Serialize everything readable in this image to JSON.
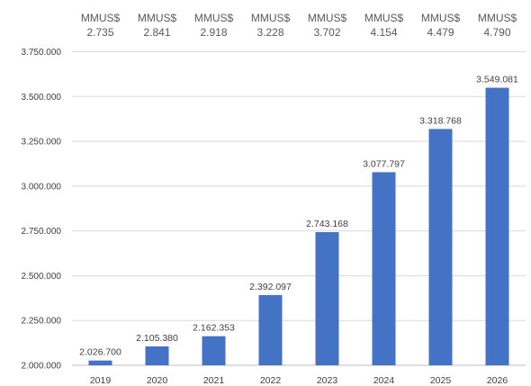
{
  "chart_data": {
    "type": "bar",
    "categories": [
      "2019",
      "2020",
      "2021",
      "2022",
      "2023",
      "2024",
      "2025",
      "2026"
    ],
    "values": [
      2026700,
      2105380,
      2162353,
      2392097,
      2743168,
      3077797,
      3318768,
      3549081
    ],
    "value_labels": [
      "2.026.700",
      "2.105.380",
      "2.162.353",
      "2.392.097",
      "2.743.168",
      "3.077.797",
      "3.318.768",
      "3.549.081"
    ],
    "top_annotations": {
      "unit": "MMUS$",
      "values": [
        "2.735",
        "2.841",
        "2.918",
        "3.228",
        "3.702",
        "4.154",
        "4.479",
        "4.790"
      ]
    },
    "ylim": [
      2000000,
      3750000
    ],
    "yticks": [
      2000000,
      2250000,
      2500000,
      2750000,
      3000000,
      3250000,
      3500000,
      3750000
    ],
    "ytick_labels": [
      "2.000.000",
      "2.250.000",
      "2.500.000",
      "2.750.000",
      "3.000.000",
      "3.250.000",
      "3.500.000",
      "3.750.000"
    ],
    "title": "",
    "xlabel": "",
    "ylabel": "",
    "grid": true,
    "bar_color": "#4472c4"
  }
}
